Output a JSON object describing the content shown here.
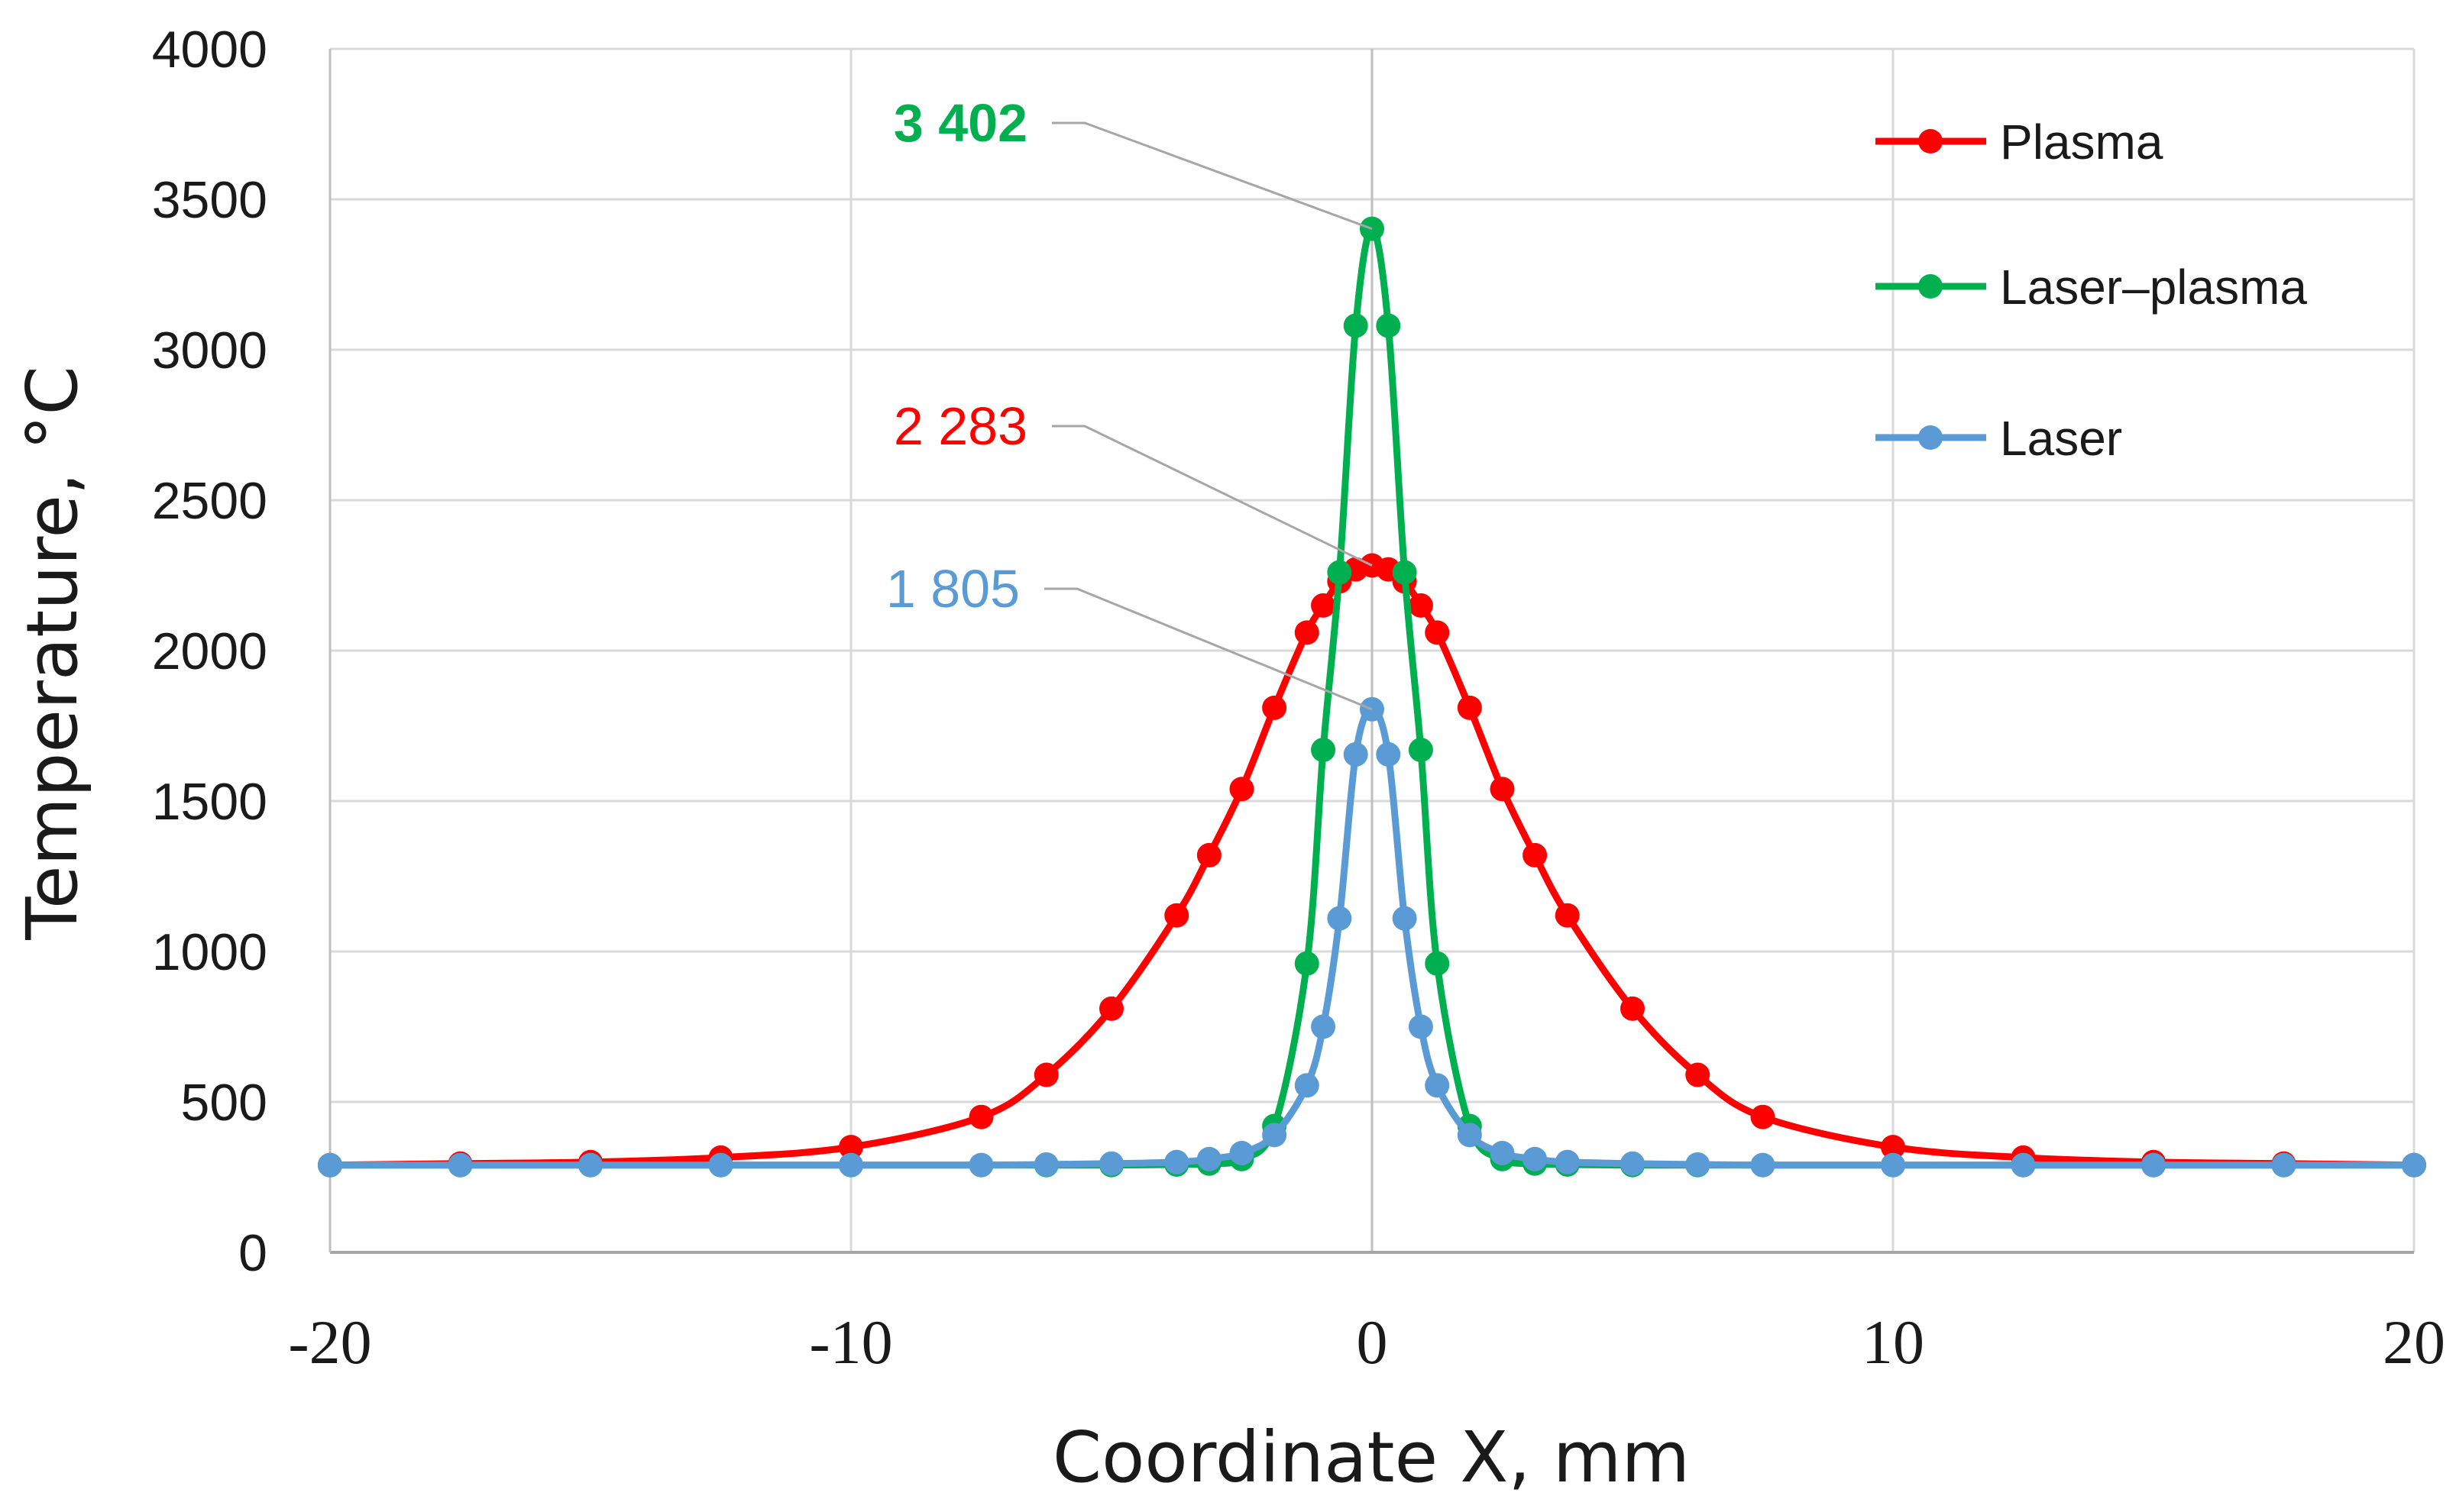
{
  "chart_data": {
    "type": "line",
    "title": "",
    "xlabel": "Coordinate X, mm",
    "ylabel": "Temperature,  °C",
    "xlim": [
      -20,
      20
    ],
    "ylim": [
      0,
      4000
    ],
    "xticks": [
      -20,
      -10,
      0,
      10,
      20
    ],
    "yticks": [
      0,
      500,
      1000,
      1500,
      2000,
      2500,
      3000,
      3500,
      4000
    ],
    "grid": true,
    "legend": "top-right",
    "series": [
      {
        "name": "Plasma",
        "color": "#ff0000",
        "x": [
          -20,
          -17.5,
          -15,
          -12.5,
          -10,
          -7.5,
          -6.25,
          -5,
          -3.75,
          -3.125,
          -2.5,
          -1.875,
          -1.25,
          -0.9375,
          -0.625,
          -0.3125,
          0,
          0.3125,
          0.625,
          0.9375,
          1.25,
          1.875,
          2.5,
          3.125,
          3.75,
          5,
          6.25,
          7.5,
          10,
          12.5,
          15,
          17.5,
          20
        ],
        "y": [
          290,
          295,
          300,
          315,
          350,
          450,
          590,
          810,
          1120,
          1320,
          1540,
          1810,
          2060,
          2150,
          2230,
          2270,
          2283,
          2270,
          2230,
          2150,
          2060,
          1810,
          1540,
          1320,
          1120,
          810,
          590,
          450,
          350,
          315,
          300,
          295,
          290
        ]
      },
      {
        "name": "Laser–plasma",
        "color": "#00b050",
        "x": [
          -20,
          -17.5,
          -15,
          -12.5,
          -10,
          -7.5,
          -6.25,
          -5,
          -3.75,
          -3.125,
          -2.5,
          -1.875,
          -1.25,
          -0.9375,
          -0.625,
          -0.3125,
          0,
          0.3125,
          0.625,
          0.9375,
          1.25,
          1.875,
          2.5,
          3.125,
          3.75,
          5,
          6.25,
          7.5,
          10,
          12.5,
          15,
          17.5,
          20
        ],
        "y": [
          290,
          290,
          290,
          290,
          290,
          290,
          290,
          290,
          292,
          295,
          310,
          420,
          960,
          1670,
          2260,
          3080,
          3402,
          3080,
          2260,
          1670,
          960,
          420,
          310,
          295,
          292,
          290,
          290,
          290,
          290,
          290,
          290,
          290,
          290
        ]
      },
      {
        "name": "Laser",
        "color": "#5b9bd5",
        "x": [
          -20,
          -17.5,
          -15,
          -12.5,
          -10,
          -7.5,
          -6.25,
          -5,
          -3.75,
          -3.125,
          -2.5,
          -1.875,
          -1.25,
          -0.9375,
          -0.625,
          -0.3125,
          0,
          0.3125,
          0.625,
          0.9375,
          1.25,
          1.875,
          2.5,
          3.125,
          3.75,
          5,
          6.25,
          7.5,
          10,
          12.5,
          15,
          17.5,
          20
        ],
        "y": [
          290,
          290,
          290,
          290,
          290,
          290,
          292,
          295,
          300,
          310,
          330,
          390,
          555,
          750,
          1110,
          1655,
          1805,
          1655,
          1110,
          750,
          555,
          390,
          330,
          310,
          300,
          295,
          292,
          290,
          290,
          290,
          290,
          290,
          290
        ]
      }
    ],
    "annotations": [
      {
        "text": "3 402",
        "series": "Laser–plasma",
        "x": 0,
        "y": 3402,
        "color": "#00b050",
        "bold": true
      },
      {
        "text": "2 283",
        "series": "Plasma",
        "x": 0,
        "y": 2283,
        "color": "#ff0000",
        "bold": false
      },
      {
        "text": "1 805",
        "series": "Laser",
        "x": 0,
        "y": 1805,
        "color": "#5b9bd5",
        "bold": false
      }
    ]
  }
}
